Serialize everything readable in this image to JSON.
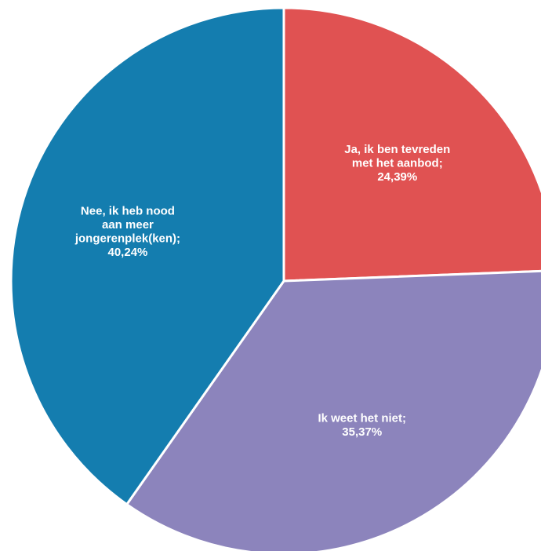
{
  "chart_data": {
    "type": "pie",
    "start_angle_deg": 0,
    "direction": "clockwise",
    "slices": [
      {
        "label": "Ja, ik ben tevreden met het aanbod",
        "value": 24.39,
        "display": "24,39%",
        "label_lines": [
          "Ja, ik ben tevreden",
          "met het aanbod;",
          "24,39%"
        ],
        "color": "#e05252"
      },
      {
        "label": "Ik weet het niet",
        "value": 35.37,
        "display": "35,37%",
        "label_lines": [
          "Ik weet het niet;",
          "35,37%"
        ],
        "color": "#8c84bc"
      },
      {
        "label": "Nee, ik heb nood aan meer jongerenplek(ken)",
        "value": 40.24,
        "display": "40,24%",
        "label_lines": [
          "Nee, ik heb nood",
          "aan meer",
          "jongerenplek(ken);",
          "40,24%"
        ],
        "color": "#147daf"
      }
    ]
  }
}
